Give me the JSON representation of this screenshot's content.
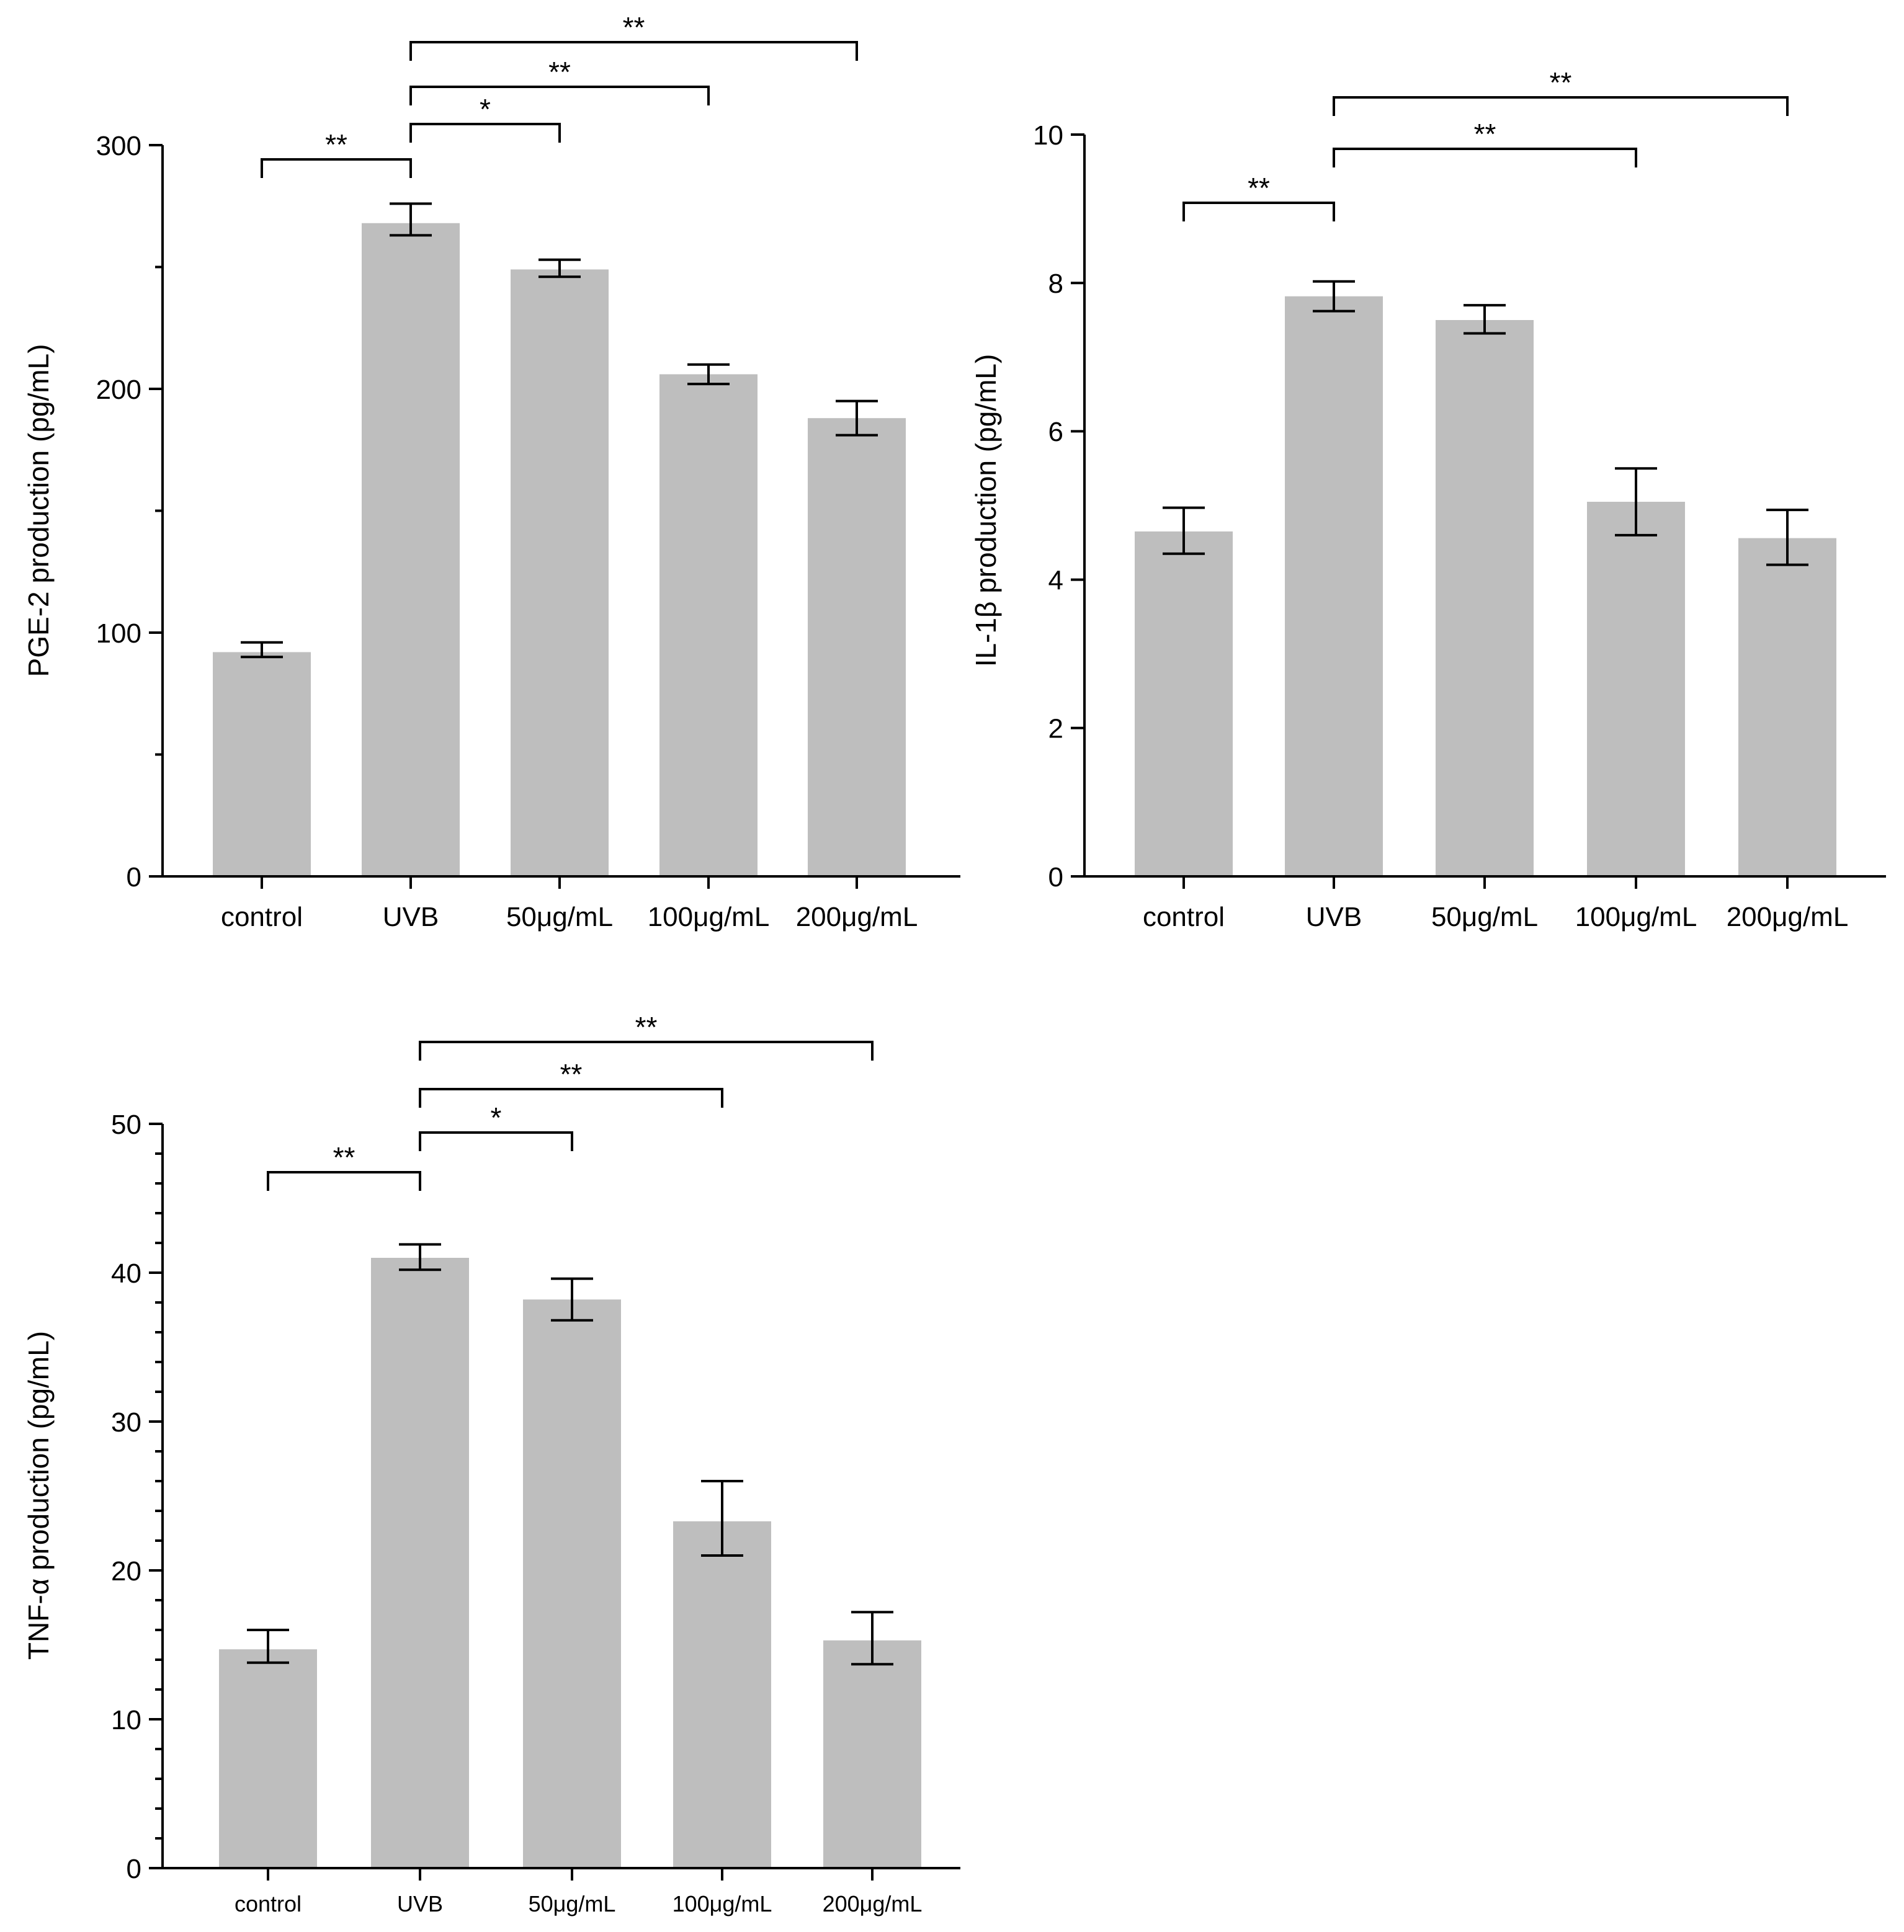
{
  "chart_data": [
    {
      "type": "bar",
      "ylabel": "PGE-2 production (pg/mL)",
      "categories": [
        "control",
        "UVB",
        "50μg/mL",
        "100μg/mL",
        "200μg/mL"
      ],
      "values": [
        92,
        268,
        249,
        206,
        188
      ],
      "error_low": [
        90,
        263,
        246,
        202,
        181
      ],
      "error_high": [
        96,
        276,
        253,
        210,
        195
      ],
      "ylim": [
        0,
        300
      ],
      "yticks": [
        "0",
        "100",
        "200",
        "300"
      ],
      "bar_color": "#bebebe",
      "significance": [
        {
          "from": "control",
          "to": "UVB",
          "label": "**"
        },
        {
          "from": "UVB",
          "to": "50μg/mL",
          "label": "*"
        },
        {
          "from": "UVB",
          "to": "100μg/mL",
          "label": "**"
        },
        {
          "from": "UVB",
          "to": "200μg/mL",
          "label": "**"
        }
      ]
    },
    {
      "type": "bar",
      "ylabel": "IL-1β production (pg/mL)",
      "categories": [
        "control",
        "UVB",
        "50μg/mL",
        "100μg/mL",
        "200μg/mL"
      ],
      "values": [
        4.65,
        7.82,
        7.5,
        5.05,
        4.56
      ],
      "error_low": [
        4.35,
        7.62,
        7.32,
        4.6,
        4.2
      ],
      "error_high": [
        4.97,
        8.02,
        7.7,
        5.5,
        4.94
      ],
      "ylim": [
        0,
        10
      ],
      "yticks": [
        "0",
        "2",
        "4",
        "6",
        "8",
        "10"
      ],
      "bar_color": "#bebebe",
      "significance": [
        {
          "from": "control",
          "to": "UVB",
          "label": "**"
        },
        {
          "from": "UVB",
          "to": "100μg/mL",
          "label": "**"
        },
        {
          "from": "UVB",
          "to": "200μg/mL",
          "label": "**"
        }
      ]
    },
    {
      "type": "bar",
      "ylabel": "TNF-α production (pg/mL)",
      "categories": [
        "control",
        "UVB",
        "50μg/mL",
        "100μg/mL",
        "200μg/mL"
      ],
      "values": [
        14.7,
        41.0,
        38.2,
        23.3,
        15.3
      ],
      "error_low": [
        13.8,
        40.2,
        36.8,
        21.0,
        13.7
      ],
      "error_high": [
        16.0,
        41.9,
        39.6,
        26.0,
        17.2
      ],
      "ylim": [
        0,
        50
      ],
      "yticks": [
        "0",
        "10",
        "20",
        "30",
        "40",
        "50"
      ],
      "bar_color": "#bebebe",
      "significance": [
        {
          "from": "control",
          "to": "UVB",
          "label": "**"
        },
        {
          "from": "UVB",
          "to": "50μg/mL",
          "label": "*"
        },
        {
          "from": "UVB",
          "to": "100μg/mL",
          "label": "**"
        },
        {
          "from": "UVB",
          "to": "200μg/mL",
          "label": "**"
        }
      ]
    }
  ]
}
